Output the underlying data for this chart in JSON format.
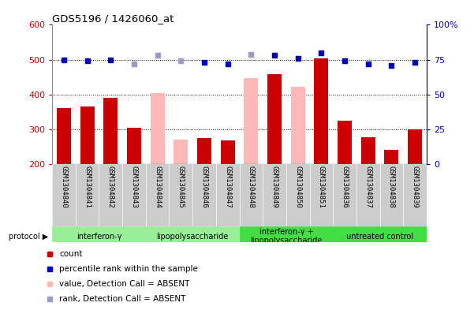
{
  "title": "GDS5196 / 1426060_at",
  "samples": [
    "GSM1304840",
    "GSM1304841",
    "GSM1304842",
    "GSM1304843",
    "GSM1304844",
    "GSM1304845",
    "GSM1304846",
    "GSM1304847",
    "GSM1304848",
    "GSM1304849",
    "GSM1304850",
    "GSM1304851",
    "GSM1304836",
    "GSM1304837",
    "GSM1304838",
    "GSM1304839"
  ],
  "bar_values": [
    362,
    365,
    390,
    305,
    405,
    270,
    275,
    268,
    447,
    458,
    422,
    503,
    325,
    278,
    242,
    300
  ],
  "bar_absent": [
    false,
    false,
    false,
    false,
    true,
    true,
    false,
    false,
    true,
    false,
    true,
    false,
    false,
    false,
    false,
    false
  ],
  "rank_values": [
    75,
    74,
    75,
    72,
    78,
    74,
    73,
    72,
    79,
    78,
    76,
    80,
    74,
    72,
    71,
    73
  ],
  "rank_absent": [
    false,
    false,
    false,
    true,
    true,
    true,
    false,
    false,
    true,
    false,
    false,
    false,
    false,
    false,
    false,
    false
  ],
  "ylim_left": [
    200,
    600
  ],
  "ylim_right": [
    0,
    100
  ],
  "yticks_left": [
    200,
    300,
    400,
    500,
    600
  ],
  "yticks_right": [
    0,
    25,
    50,
    75,
    100
  ],
  "bar_color_present": "#cc0000",
  "bar_color_absent": "#ffb8b8",
  "rank_color_present": "#0000bb",
  "rank_color_absent": "#9999cc",
  "bg_color": "#cccccc",
  "plot_bg": "#ffffff",
  "protocols": [
    {
      "label": "interferon-γ",
      "start": 0,
      "end": 4,
      "color": "#99ee99"
    },
    {
      "label": "lipopolysaccharide",
      "start": 4,
      "end": 8,
      "color": "#99ee99"
    },
    {
      "label": "interferon-γ +\nlipopolysaccharide",
      "start": 8,
      "end": 12,
      "color": "#44dd44"
    },
    {
      "label": "untreated control",
      "start": 12,
      "end": 16,
      "color": "#44dd44"
    }
  ],
  "legend_items": [
    {
      "label": "count",
      "color": "#cc0000"
    },
    {
      "label": "percentile rank within the sample",
      "color": "#0000bb"
    },
    {
      "label": "value, Detection Call = ABSENT",
      "color": "#ffb8b8"
    },
    {
      "label": "rank, Detection Call = ABSENT",
      "color": "#9999cc"
    }
  ]
}
